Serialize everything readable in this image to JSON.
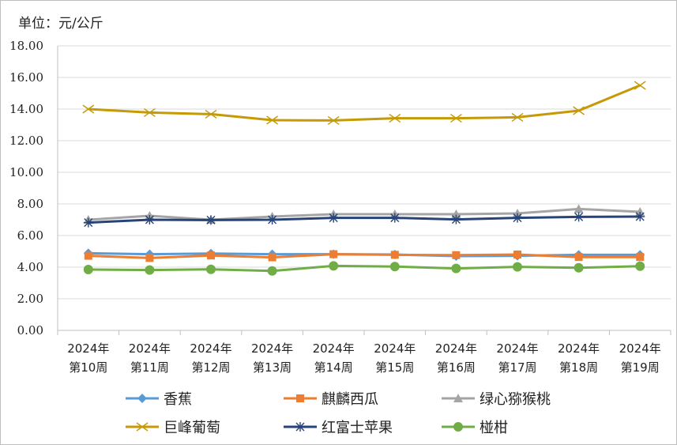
{
  "chart_data": {
    "type": "line",
    "unit_label": "单位：元/公斤",
    "categories": [
      [
        "2024年",
        "第10周"
      ],
      [
        "2024年",
        "第11周"
      ],
      [
        "2024年",
        "第12周"
      ],
      [
        "2024年",
        "第13周"
      ],
      [
        "2024年",
        "第14周"
      ],
      [
        "2024年",
        "第15周"
      ],
      [
        "2024年",
        "第16周"
      ],
      [
        "2024年",
        "第17周"
      ],
      [
        "2024年",
        "第18周"
      ],
      [
        "2024年",
        "第19周"
      ]
    ],
    "ylim": [
      0,
      18
    ],
    "yticks": [
      "0.00",
      "2.00",
      "4.00",
      "6.00",
      "8.00",
      "10.00",
      "12.00",
      "14.00",
      "16.00",
      "18.00"
    ],
    "grid": "horizontal",
    "legend_position": "bottom",
    "series": [
      {
        "name": "香蕉",
        "color": "#5b9bd5",
        "marker": "diamond",
        "values": [
          4.88,
          4.82,
          4.86,
          4.82,
          4.82,
          4.8,
          4.7,
          4.72,
          4.78,
          4.78
        ]
      },
      {
        "name": "麒麟西瓜",
        "color": "#ed7d31",
        "marker": "square",
        "values": [
          4.72,
          4.58,
          4.74,
          4.62,
          4.82,
          4.78,
          4.76,
          4.8,
          4.64,
          4.64
        ]
      },
      {
        "name": "绿心猕猴桃",
        "color": "#a5a5a5",
        "marker": "triangle",
        "values": [
          7.0,
          7.25,
          7.0,
          7.2,
          7.35,
          7.35,
          7.35,
          7.4,
          7.68,
          7.5
        ]
      },
      {
        "name": "巨峰葡萄",
        "color": "#c59a06",
        "marker": "x",
        "values": [
          14.0,
          13.78,
          13.68,
          13.3,
          13.28,
          13.42,
          13.42,
          13.48,
          13.9,
          15.5
        ]
      },
      {
        "name": "红富士苹果",
        "color": "#264478",
        "marker": "star",
        "values": [
          6.82,
          7.0,
          6.98,
          7.0,
          7.12,
          7.12,
          7.02,
          7.12,
          7.18,
          7.2
        ]
      },
      {
        "name": "椪柑",
        "color": "#70ad47",
        "marker": "circle",
        "values": [
          3.85,
          3.82,
          3.86,
          3.76,
          4.08,
          4.04,
          3.92,
          4.02,
          3.96,
          4.06
        ]
      }
    ]
  }
}
